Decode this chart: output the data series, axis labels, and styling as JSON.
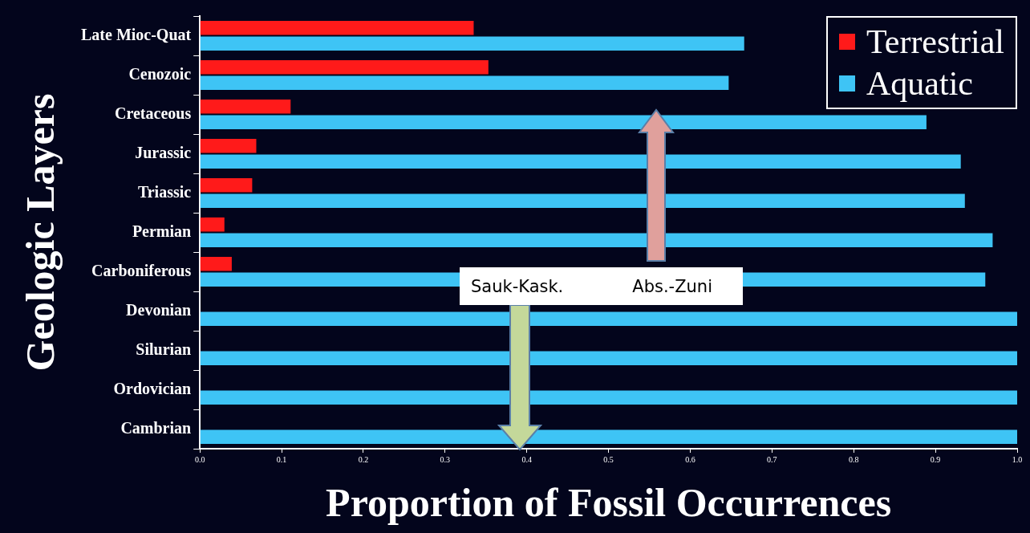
{
  "chart_data": {
    "type": "bar",
    "orientation": "horizontal",
    "xlabel": "Proportion of Fossil Occurrences",
    "ylabel": "Geologic Layers",
    "categories": [
      "Late Mioc-Quat",
      "Cenozoic",
      "Cretaceous",
      "Jurassic",
      "Triassic",
      "Permian",
      "Carboniferous",
      "Devonian",
      "Silurian",
      "Ordovician",
      "Cambrian"
    ],
    "series": [
      {
        "name": "Terrestrial",
        "color": "#ff1a1a",
        "values": [
          0.335,
          0.353,
          0.111,
          0.069,
          0.064,
          0.03,
          0.039,
          0,
          0,
          0,
          0
        ]
      },
      {
        "name": "Aquatic",
        "color": "#3ec4f5",
        "values": [
          0.666,
          0.647,
          0.889,
          0.931,
          0.936,
          0.97,
          0.961,
          1.0,
          1.0,
          1.0,
          1.0
        ]
      }
    ],
    "xlim": [
      0,
      1
    ],
    "xticks": [
      {
        "value": 0,
        "label": "0.0"
      },
      0.1,
      0.2,
      0.3,
      0.4,
      0.5,
      0.6,
      0.7,
      0.8,
      0.9,
      {
        "value": 1,
        "label": "1.0"
      }
    ],
    "grid": false,
    "legend": "top right",
    "annotations": [
      "Sauk-Kask.",
      "Abs.-Zuni"
    ]
  }
}
